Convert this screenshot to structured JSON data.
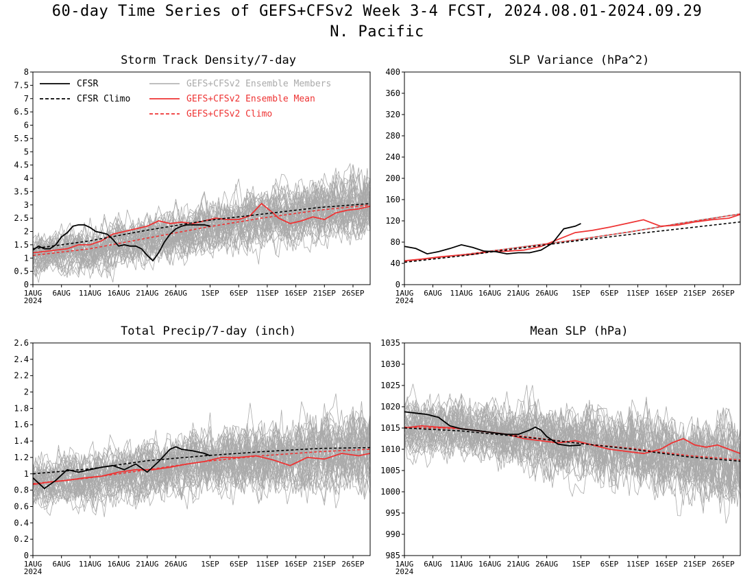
{
  "figure": {
    "title_line1": "60-day Time Series of GEFS+CFSv2 Week 3-4 FCST, 2024.08.01-2024.09.29",
    "title_line2": "N. Pacific"
  },
  "colors": {
    "cfsr": "#000000",
    "members": "#aaaaaa",
    "ens_mean": "#ee3333",
    "background": "#ffffff"
  },
  "x_axis": {
    "tick_days": [
      0,
      5,
      10,
      15,
      20,
      25,
      31,
      36,
      41,
      46,
      51,
      56
    ],
    "tick_labels": [
      "1AUG",
      "6AUG",
      "11AUG",
      "16AUG",
      "21AUG",
      "26AUG",
      "1SEP",
      "6SEP",
      "11SEP",
      "16SEP",
      "21SEP",
      "26SEP"
    ],
    "year_label": "2024",
    "range": [
      0,
      59
    ]
  },
  "legend": {
    "cfsr": "CFSR",
    "cfsr_climo": "CFSR Climo",
    "members": "GEFS+CFSv2 Ensemble Members",
    "ens_mean": "GEFS+CFSv2 Ensemble Mean",
    "ens_climo": "GEFS+CFSv2 Climo"
  },
  "chart_data": [
    {
      "type": "line",
      "title": "Storm Track Density/7-day",
      "ylim": [
        0,
        8
      ],
      "yticks": [
        0,
        0.5,
        1,
        1.5,
        2,
        2.5,
        3,
        3.5,
        4,
        4.5,
        5,
        5.5,
        6,
        6.5,
        7,
        7.5,
        8
      ],
      "ytick_labels": [
        "0",
        "0.5",
        "1",
        "1.5",
        "2",
        "2.5",
        "3",
        "3.5",
        "4",
        "4.5",
        "5",
        "5.5",
        "6",
        "6.5",
        "7",
        "7.5",
        "8"
      ],
      "member_spread": [
        0.5,
        0.85
      ],
      "member_count": 40,
      "series": [
        {
          "name": "CFSR",
          "style": "solid",
          "color": "cfsr",
          "x": [
            0,
            1,
            2,
            3,
            4,
            5,
            6,
            7,
            8,
            9,
            10,
            11,
            12,
            13,
            14,
            15,
            16,
            17,
            18,
            19,
            20,
            21,
            22,
            23,
            24,
            25,
            26,
            27,
            28,
            29,
            30,
            31
          ],
          "y": [
            1.3,
            1.45,
            1.35,
            1.35,
            1.5,
            1.8,
            1.95,
            2.2,
            2.25,
            2.25,
            2.15,
            2.0,
            1.95,
            1.9,
            1.7,
            1.45,
            1.5,
            1.45,
            1.45,
            1.35,
            1.1,
            0.9,
            1.2,
            1.6,
            1.9,
            2.1,
            2.2,
            2.25,
            2.25,
            2.25,
            2.25,
            2.2
          ]
        },
        {
          "name": "CFSR Climo",
          "style": "dashed",
          "color": "cfsr",
          "x": [
            0,
            10,
            20,
            30,
            40,
            50,
            59
          ],
          "y": [
            1.35,
            1.65,
            2.05,
            2.4,
            2.65,
            2.9,
            3.05
          ]
        },
        {
          "name": "GEFS+CFSv2 Ensemble Mean",
          "style": "solid",
          "color": "ens_mean",
          "x": [
            0,
            2,
            4,
            6,
            8,
            10,
            12,
            14,
            16,
            18,
            20,
            22,
            24,
            26,
            28,
            30,
            32,
            34,
            36,
            38,
            40,
            42,
            43,
            45,
            47,
            49,
            51,
            53,
            55,
            57,
            59
          ],
          "y": [
            1.2,
            1.25,
            1.3,
            1.35,
            1.5,
            1.5,
            1.65,
            1.9,
            2.0,
            2.1,
            2.2,
            2.4,
            2.3,
            2.35,
            2.3,
            2.4,
            2.5,
            2.45,
            2.45,
            2.6,
            3.05,
            2.7,
            2.5,
            2.3,
            2.4,
            2.55,
            2.45,
            2.7,
            2.8,
            2.85,
            2.95
          ]
        },
        {
          "name": "GEFS+CFSv2 Climo",
          "style": "dashed",
          "color": "ens_mean",
          "x": [
            0,
            10,
            20,
            30,
            40,
            50,
            59
          ],
          "y": [
            1.1,
            1.35,
            1.75,
            2.15,
            2.5,
            2.8,
            3.0
          ]
        }
      ]
    },
    {
      "type": "line",
      "title": "SLP Variance (hPa^2)",
      "ylim": [
        0,
        400
      ],
      "yticks": [
        0,
        40,
        80,
        120,
        160,
        200,
        240,
        280,
        320,
        360,
        400
      ],
      "ytick_labels": [
        "0",
        "40",
        "80",
        "120",
        "160",
        "200",
        "240",
        "280",
        "320",
        "360",
        "400"
      ],
      "member_spread": [
        0.3,
        0.55
      ],
      "member_count": 40,
      "series": [
        {
          "name": "CFSR",
          "style": "solid",
          "color": "cfsr",
          "x": [
            0,
            2,
            4,
            6,
            8,
            10,
            12,
            14,
            16,
            18,
            20,
            22,
            24,
            26,
            28,
            30,
            31
          ],
          "y": [
            72,
            68,
            58,
            62,
            68,
            75,
            70,
            63,
            62,
            58,
            60,
            60,
            65,
            78,
            105,
            110,
            115
          ]
        },
        {
          "name": "CFSR Climo",
          "style": "dashed",
          "color": "cfsr",
          "x": [
            0,
            10,
            20,
            30,
            40,
            50,
            59
          ],
          "y": [
            42,
            54,
            68,
            82,
            95,
            107,
            118
          ]
        },
        {
          "name": "GEFS+CFSv2 Ensemble Mean",
          "style": "solid",
          "color": "ens_mean",
          "x": [
            0,
            3,
            6,
            9,
            12,
            15,
            18,
            21,
            24,
            27,
            30,
            33,
            36,
            39,
            42,
            45,
            48,
            51,
            54,
            57,
            59
          ],
          "y": [
            45,
            48,
            52,
            55,
            57,
            62,
            63,
            65,
            72,
            85,
            98,
            102,
            108,
            115,
            122,
            110,
            112,
            118,
            122,
            125,
            132
          ]
        },
        {
          "name": "GEFS+CFSv2 Climo",
          "style": "dashed",
          "color": "ens_mean",
          "x": [
            0,
            10,
            20,
            30,
            40,
            50,
            59
          ],
          "y": [
            44,
            56,
            70,
            84,
            100,
            118,
            133
          ]
        }
      ]
    },
    {
      "type": "line",
      "title": "Total Precip/7-day (inch)",
      "ylim": [
        0,
        2.6
      ],
      "yticks": [
        0,
        0.2,
        0.4,
        0.6,
        0.8,
        1,
        1.2,
        1.4,
        1.6,
        1.8,
        2,
        2.2,
        2.4,
        2.6
      ],
      "ytick_labels": [
        "0",
        "0.2",
        "0.4",
        "0.6",
        "0.8",
        "1",
        "1.2",
        "1.4",
        "1.6",
        "1.8",
        "2",
        "2.2",
        "2.4",
        "2.6"
      ],
      "member_spread": [
        0.18,
        0.35
      ],
      "member_count": 40,
      "series": [
        {
          "name": "CFSR",
          "style": "solid",
          "color": "cfsr",
          "x": [
            0,
            2,
            4,
            6,
            8,
            10,
            12,
            14,
            16,
            18,
            20,
            22,
            24,
            25,
            26,
            28,
            30,
            31
          ],
          "y": [
            0.95,
            0.82,
            0.92,
            1.05,
            1.02,
            1.05,
            1.08,
            1.1,
            1.05,
            1.12,
            1.02,
            1.15,
            1.3,
            1.33,
            1.3,
            1.28,
            1.25,
            1.22
          ]
        },
        {
          "name": "CFSR Climo",
          "style": "dashed",
          "color": "cfsr",
          "x": [
            0,
            10,
            20,
            30,
            40,
            50,
            59
          ],
          "y": [
            1.0,
            1.06,
            1.16,
            1.22,
            1.27,
            1.31,
            1.32
          ]
        },
        {
          "name": "GEFS+CFSv2 Ensemble Mean",
          "style": "solid",
          "color": "ens_mean",
          "x": [
            0,
            3,
            6,
            9,
            12,
            15,
            18,
            21,
            24,
            27,
            30,
            33,
            36,
            39,
            42,
            45,
            48,
            51,
            54,
            57,
            59
          ],
          "y": [
            0.87,
            0.9,
            0.92,
            0.95,
            0.97,
            1.02,
            1.05,
            1.05,
            1.08,
            1.12,
            1.15,
            1.2,
            1.2,
            1.22,
            1.17,
            1.1,
            1.2,
            1.18,
            1.25,
            1.22,
            1.25
          ]
        },
        {
          "name": "GEFS+CFSv2 Climo",
          "style": "dashed",
          "color": "ens_mean",
          "x": [
            0,
            10,
            20,
            30,
            40,
            50,
            59
          ],
          "y": [
            0.88,
            0.95,
            1.05,
            1.15,
            1.22,
            1.27,
            1.3
          ]
        }
      ]
    },
    {
      "type": "line",
      "title": "Mean SLP (hPa)",
      "ylim": [
        985,
        1035
      ],
      "yticks": [
        985,
        990,
        995,
        1000,
        1005,
        1010,
        1015,
        1020,
        1025,
        1030,
        1035
      ],
      "ytick_labels": [
        "985",
        "990",
        "995",
        "1000",
        "1005",
        "1010",
        "1015",
        "1020",
        "1025",
        "1030",
        "1035"
      ],
      "member_spread": [
        4,
        7
      ],
      "member_count": 40,
      "series": [
        {
          "name": "CFSR",
          "style": "solid",
          "color": "cfsr",
          "x": [
            0,
            2,
            4,
            6,
            8,
            10,
            12,
            14,
            16,
            18,
            20,
            22,
            23,
            24,
            25,
            27,
            29,
            31
          ],
          "y": [
            1018.8,
            1018.5,
            1018.2,
            1017.5,
            1015.5,
            1014.8,
            1014.5,
            1014.2,
            1013.8,
            1013.5,
            1013.5,
            1014.5,
            1015.2,
            1014.5,
            1013,
            1011.2,
            1010.8,
            1011
          ]
        },
        {
          "name": "CFSR Climo",
          "style": "dashed",
          "color": "cfsr",
          "x": [
            0,
            10,
            20,
            30,
            40,
            50,
            59
          ],
          "y": [
            1015,
            1014.3,
            1013,
            1011.5,
            1010,
            1008.2,
            1007.2
          ]
        },
        {
          "name": "GEFS+CFSv2 Ensemble Mean",
          "style": "solid",
          "color": "ens_mean",
          "x": [
            0,
            3,
            6,
            9,
            12,
            15,
            18,
            21,
            24,
            27,
            30,
            33,
            36,
            39,
            42,
            45,
            47,
            49,
            51,
            53,
            55,
            57,
            59
          ],
          "y": [
            1015,
            1015.5,
            1015.2,
            1015,
            1014.5,
            1014,
            1013.5,
            1012.5,
            1012,
            1011.5,
            1012,
            1011,
            1010,
            1009.5,
            1009,
            1010,
            1011.5,
            1012.5,
            1011,
            1010.5,
            1011,
            1010,
            1009
          ]
        },
        {
          "name": "GEFS+CFSv2 Climo",
          "style": "dashed",
          "color": "ens_mean",
          "x": [
            0,
            10,
            20,
            30,
            40,
            50,
            59
          ],
          "y": [
            1015.2,
            1014.8,
            1013.2,
            1011.5,
            1010.2,
            1008.5,
            1007.5
          ]
        }
      ]
    }
  ]
}
